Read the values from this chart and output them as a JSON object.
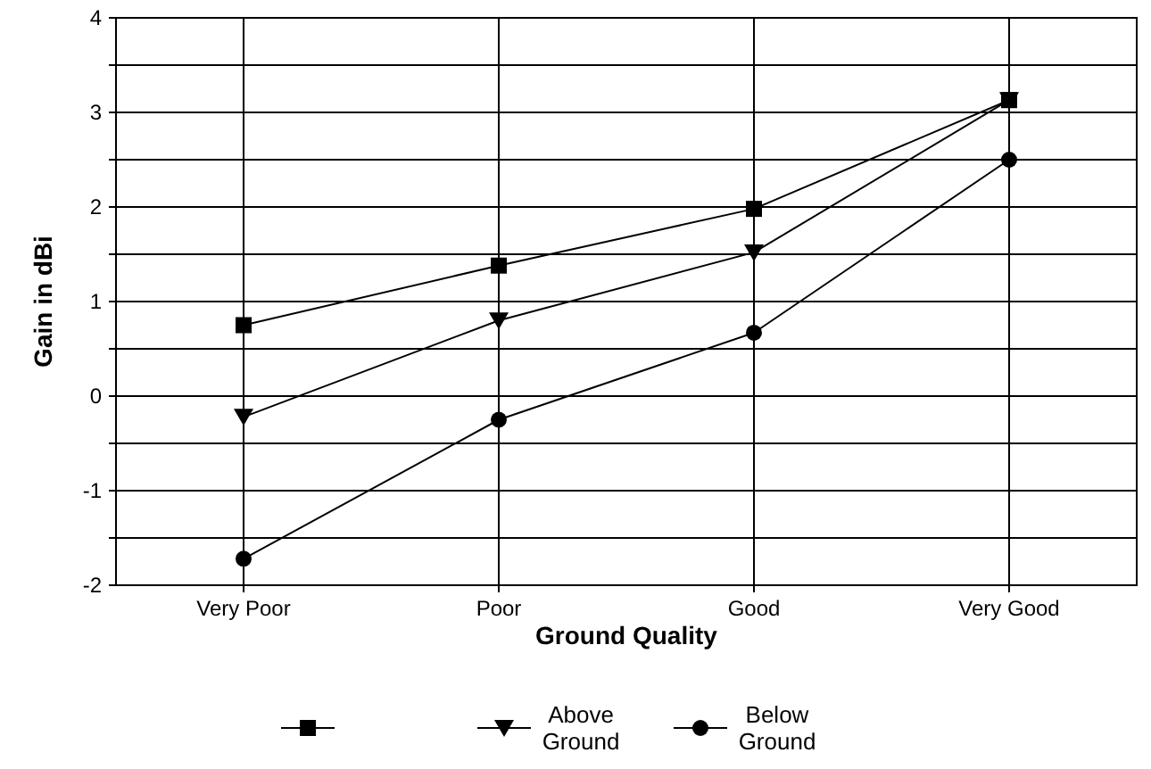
{
  "chart_data": {
    "type": "line",
    "xlabel": "Ground Quality",
    "ylabel": "Gain in dBi",
    "categories": [
      "Very Poor",
      "Poor",
      "Good",
      "Very Good"
    ],
    "series": [
      {
        "color": "#000000",
        "marker": "square",
        "values": [
          0.75,
          1.38,
          1.98,
          3.13
        ]
      },
      {
        "name": "Above Ground",
        "color": "#000000",
        "marker": "triangle",
        "values": [
          -0.22,
          0.8,
          1.52,
          3.13
        ]
      },
      {
        "name": "Below Ground",
        "color": "#000000",
        "marker": "circle",
        "values": [
          -1.72,
          -0.25,
          0.67,
          2.5
        ]
      }
    ],
    "ylim": [
      -2,
      4
    ],
    "yticks": [
      -2,
      {
        "value": -1.5,
        "label": null
      },
      -1,
      {
        "value": -0.5,
        "label": null
      },
      0,
      {
        "value": 0.5,
        "label": null
      },
      1,
      {
        "value": 1.5,
        "label": null
      },
      2,
      {
        "value": 2.5,
        "label": null
      },
      3,
      {
        "value": 3.5,
        "label": null
      },
      4
    ],
    "grid": true,
    "legend": "bottom",
    "line_style": "solid"
  }
}
